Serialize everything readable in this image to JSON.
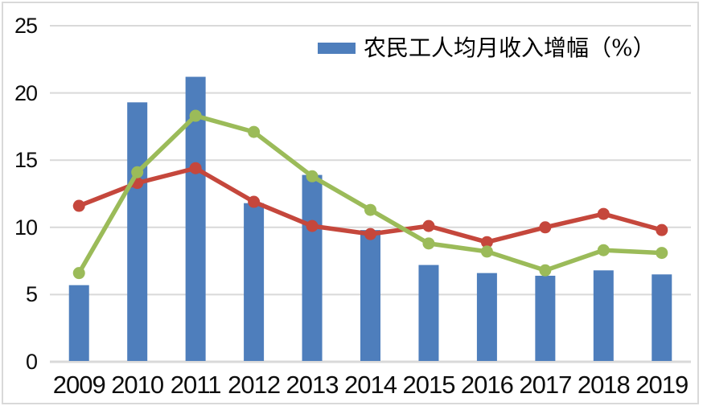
{
  "chart": {
    "background": "#FFFFFF",
    "border_color": "#D9D9D9",
    "grid_color": "#D9D9D9",
    "axis_color": "#D9D9D9",
    "tick_text_color": "#0D0D0D",
    "legend": {
      "label": "农民工人均月收入增幅（%）",
      "swatch_color": "#4E7EBC"
    }
  },
  "chart_data": {
    "type": "bar",
    "title": "",
    "xlabel": "",
    "ylabel": "",
    "categories": [
      "2009",
      "2010",
      "2011",
      "2012",
      "2013",
      "2014",
      "2015",
      "2016",
      "2017",
      "2018",
      "2019"
    ],
    "series": [
      {
        "name": "农民工人均月收入增幅（%）",
        "type": "bar",
        "color_name": "blue",
        "color": "#4E7EBC",
        "in_legend": true,
        "values": [
          5.7,
          19.3,
          21.2,
          11.8,
          13.9,
          9.8,
          7.2,
          6.6,
          6.4,
          6.8,
          6.5
        ]
      },
      {
        "name": "",
        "type": "line",
        "color_name": "red",
        "color": "#C5473C",
        "in_legend": false,
        "values": [
          11.6,
          13.3,
          14.4,
          11.9,
          10.1,
          9.5,
          10.1,
          8.9,
          10.0,
          11.0,
          9.8
        ]
      },
      {
        "name": "",
        "type": "line",
        "color_name": "green",
        "color": "#9BBB59",
        "in_legend": false,
        "values": [
          6.6,
          14.1,
          18.3,
          17.1,
          13.8,
          11.3,
          8.8,
          8.2,
          6.8,
          8.3,
          8.1
        ]
      }
    ],
    "ylim": [
      0,
      25
    ],
    "yticks": [
      "0",
      "5",
      "10",
      "15",
      "20",
      "25"
    ],
    "grid": "horizontal",
    "legend_position": "top-center-right"
  }
}
